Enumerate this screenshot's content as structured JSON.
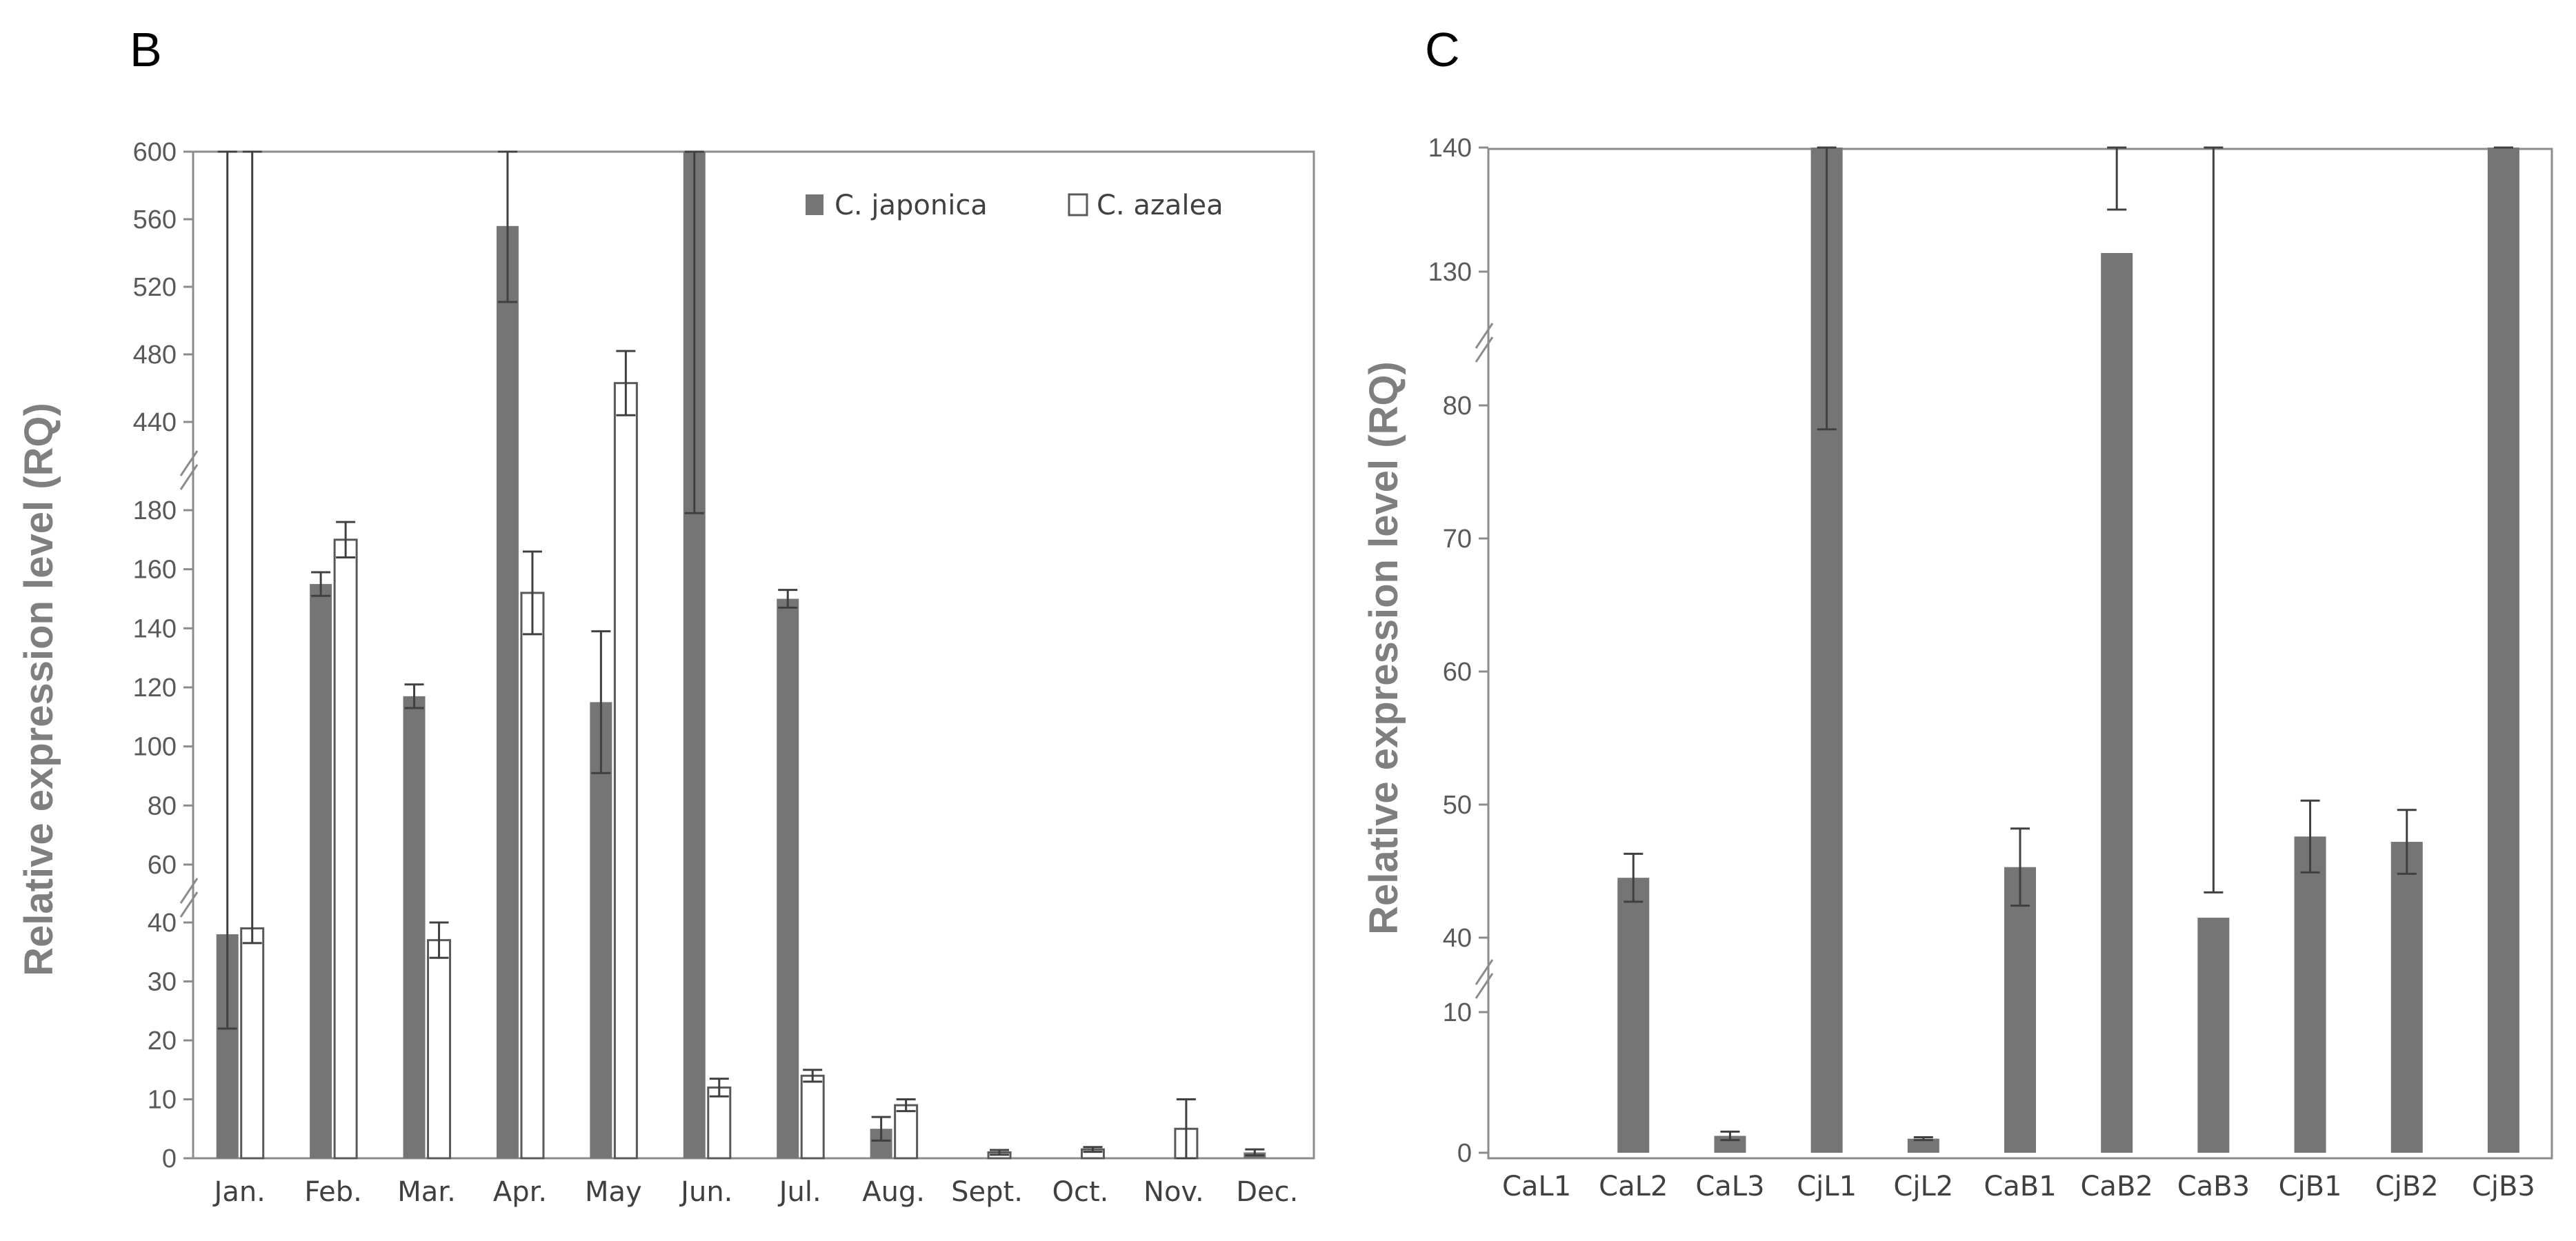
{
  "colors": {
    "japonica_fill": "#757575",
    "azalea_fill": "#ffffff",
    "outline": "#595959",
    "axis": "#8c8c8c",
    "errorbar": "#404040"
  },
  "chart_data": [
    {
      "type": "bar",
      "panel_label": "B",
      "ylabel": "Relative  expression  level (RQ)",
      "xlabel": "",
      "categories": [
        "Jan.",
        "Feb.",
        "Mar.",
        "Apr.",
        "May",
        "Jun.",
        "Jul.",
        "Aug.",
        "Sept.",
        "Oct.",
        "Nov.",
        "Dec."
      ],
      "series": [
        {
          "name": "C. japonica",
          "values": [
            38,
            155,
            117,
            556,
            115,
            184,
            150,
            5,
            0,
            0,
            0,
            1
          ],
          "errors": [
            16,
            4,
            4,
            45,
            24,
            5,
            3,
            2,
            0,
            0,
            0,
            0.5
          ]
        },
        {
          "name": "C. azalea",
          "values": [
            39,
            170,
            37,
            152,
            463,
            12,
            14,
            9,
            1,
            1.5,
            5,
            0
          ],
          "errors": [
            2.5,
            6,
            3,
            14,
            19,
            1.5,
            1,
            1,
            0.4,
            0.4,
            5,
            0
          ]
        }
      ],
      "axis_breaks": [
        "40 to 60",
        "180 to 440"
      ],
      "segments": [
        {
          "range": [
            0,
            40
          ],
          "ticks": [
            "0",
            "10",
            "20",
            "30",
            "40"
          ]
        },
        {
          "range": [
            60,
            180
          ],
          "ticks": [
            "60",
            "80",
            "100",
            "120",
            "140",
            "160",
            "180"
          ]
        },
        {
          "range": [
            440,
            600
          ],
          "ticks": [
            "440",
            "480",
            "520",
            "560",
            "600"
          ]
        }
      ],
      "legend": [
        "C. japonica",
        "C. azalea"
      ],
      "legend_position": "top-right"
    },
    {
      "type": "bar",
      "panel_label": "C",
      "ylabel": "Relative  expression  level (RQ)",
      "xlabel": "",
      "categories": [
        "CaL1",
        "CaL2",
        "CaL3",
        "CjL1",
        "CjL2",
        "CaB1",
        "CaB2",
        "CaB3",
        "CjB1",
        "CjB2",
        "CjB3"
      ],
      "series": [
        {
          "name": "expression",
          "values": [
            0,
            44.5,
            1.2,
            81,
            1,
            45.3,
            131.5,
            41.5,
            47.6,
            47.2,
            10.9
          ],
          "errors": [
            0,
            1.8,
            0.3,
            2.8,
            0.1,
            2.9,
            3.5,
            1.9,
            2.7,
            2.4,
            0.1
          ]
        }
      ],
      "axis_breaks": [
        "10 to 40",
        "80 to 130"
      ],
      "segments": [
        {
          "range": [
            0,
            10
          ],
          "ticks": [
            "0",
            "10"
          ]
        },
        {
          "range": [
            40,
            80
          ],
          "ticks": [
            "40",
            "50",
            "60",
            "70",
            "80"
          ]
        },
        {
          "range": [
            130,
            140
          ],
          "ticks": [
            "130",
            "140"
          ]
        }
      ]
    }
  ]
}
